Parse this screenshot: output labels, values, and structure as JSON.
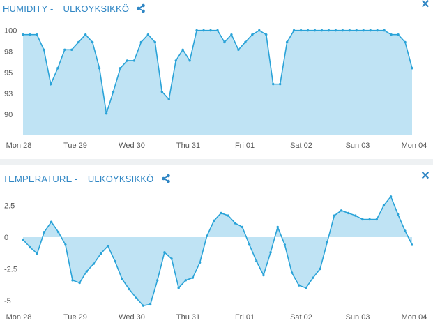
{
  "humidity": {
    "title": "HUMIDITY -",
    "device": "ULKOYKSIKKÖ",
    "chart_data": {
      "type": "area",
      "ylim": [
        87.5,
        100.8
      ],
      "y_ticks": [
        "100",
        "98",
        "95",
        "93",
        "90"
      ],
      "y_tick_values": [
        100,
        97.5,
        95,
        92.5,
        90
      ],
      "x_ticks": [
        "Mon 28",
        "Tue 29",
        "Wed 30",
        "Thu 31",
        "Fri 01",
        "Sat 02",
        "Sun 03",
        "Mon 04"
      ],
      "values": [
        99.5,
        99.5,
        99.5,
        97.7,
        93.6,
        95.5,
        97.7,
        97.7,
        98.6,
        99.5,
        98.6,
        95.5,
        90.1,
        92.7,
        95.5,
        96.4,
        96.4,
        98.6,
        99.5,
        98.6,
        92.7,
        91.8,
        96.4,
        97.7,
        96.4,
        100,
        100,
        100,
        100,
        98.6,
        99.5,
        97.7,
        98.6,
        99.5,
        100,
        99.5,
        93.6,
        93.6,
        98.6,
        100,
        100,
        100,
        100,
        100,
        100,
        100,
        100,
        100,
        100,
        100,
        100,
        100,
        100,
        99.5,
        99.5,
        98.6,
        95.5
      ]
    }
  },
  "temperature": {
    "title": "TEMPERATURE -",
    "device": "ULKOYKSIKKÖ",
    "chart_data": {
      "type": "area",
      "ylim": [
        -5.5,
        3.3
      ],
      "y_ticks": [
        "2.5",
        "0",
        "-2.5",
        "-5"
      ],
      "y_tick_values": [
        2.5,
        0,
        -2.5,
        -5
      ],
      "x_ticks": [
        "Mon 28",
        "Tue 29",
        "Wed 30",
        "Thu 31",
        "Fri 01",
        "Sat 02",
        "Sun 03",
        "Mon 04"
      ],
      "values": [
        -0.2,
        -0.8,
        -1.3,
        0.4,
        1.2,
        0.4,
        -0.6,
        -3.4,
        -3.6,
        -2.7,
        -2.1,
        -1.3,
        -0.7,
        -1.9,
        -3.3,
        -4.1,
        -4.8,
        -5.4,
        -5.3,
        -3.4,
        -1.2,
        -1.7,
        -4.0,
        -3.4,
        -3.2,
        -2.0,
        0.1,
        1.3,
        1.9,
        1.7,
        1.1,
        0.8,
        -0.6,
        -1.9,
        -3.0,
        -1.2,
        0.8,
        -0.6,
        -2.8,
        -3.8,
        -4.0,
        -3.2,
        -2.5,
        -0.4,
        1.7,
        2.1,
        1.9,
        1.7,
        1.4,
        1.4,
        1.4,
        2.5,
        3.2,
        1.8,
        0.5,
        -0.6
      ]
    }
  },
  "colors": {
    "accent": "#2f86c4",
    "line": "#2aa3d8",
    "fill": "#bfe3f4",
    "separator": "#eef1f3"
  },
  "icons": {
    "share": "share-icon",
    "close": "close-icon"
  }
}
